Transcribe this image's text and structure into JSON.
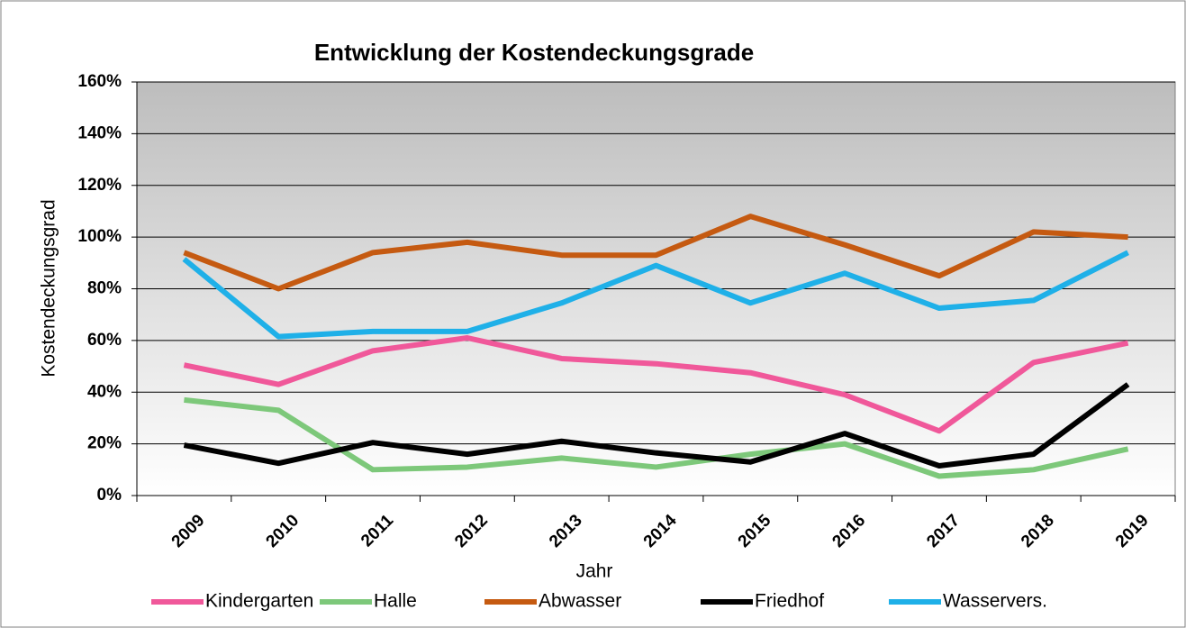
{
  "chart_data": {
    "type": "line",
    "title": "Entwicklung der Kostendeckungsgrade",
    "x_label": "Jahr",
    "y_label": "Kostendeckungsgrad",
    "categories": [
      "2009",
      "2010",
      "2011",
      "2012",
      "2013",
      "2014",
      "2015",
      "2016",
      "2017",
      "2018",
      "2019"
    ],
    "series": [
      {
        "name": "Kindergarten",
        "color": "#f0589a",
        "values": [
          50.5,
          43,
          56,
          61,
          53,
          51,
          47.5,
          39,
          25,
          51.5,
          59
        ]
      },
      {
        "name": "Halle",
        "color": "#7dc87a",
        "values": [
          37,
          33,
          10,
          11,
          14.5,
          11,
          16,
          20,
          7.5,
          10,
          18
        ]
      },
      {
        "name": "Abwasser",
        "color": "#c55a11",
        "values": [
          94,
          80,
          94,
          98,
          93,
          93,
          108,
          97,
          85,
          102,
          100
        ]
      },
      {
        "name": "Friedhof",
        "color": "#000000",
        "values": [
          19.5,
          12.5,
          20.5,
          16,
          21,
          16.5,
          13,
          24,
          11.5,
          16,
          43
        ]
      },
      {
        "name": "Wasservers.",
        "color": "#1fb0e8",
        "values": [
          91.5,
          61.5,
          63.5,
          63.5,
          74.5,
          89,
          74.5,
          86,
          72.5,
          75.5,
          94
        ]
      }
    ],
    "ylim": [
      0,
      160
    ],
    "yticks": [
      {
        "value": 0,
        "label": "0%"
      },
      {
        "value": 20,
        "label": "20%"
      },
      {
        "value": 40,
        "label": "40%"
      },
      {
        "value": 60,
        "label": "60%"
      },
      {
        "value": 80,
        "label": "80%"
      },
      {
        "value": 100,
        "label": "100%"
      },
      {
        "value": 120,
        "label": "120%"
      },
      {
        "value": 140,
        "label": "140%"
      },
      {
        "value": 160,
        "label": "160%"
      }
    ],
    "grid": true,
    "legend": "bottom"
  }
}
